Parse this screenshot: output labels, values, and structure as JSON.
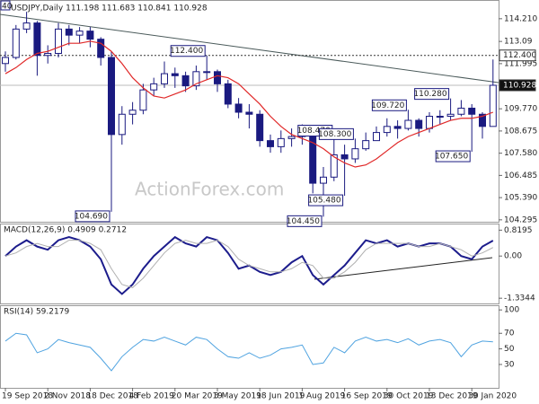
{
  "chart_data": [
    {
      "type": "candlestick",
      "title": "USDJPY,Daily  111.198 111.683 110.841 110.928",
      "corner_label": "40",
      "watermark": "ActionForex.com",
      "categories": [
        "19 Sep 2018",
        null,
        null,
        null,
        "2 Nov 2018",
        null,
        null,
        null,
        "18 Dec 2018",
        null,
        null,
        null,
        "4 Feb 2019",
        null,
        null,
        null,
        "20 Mar 2019",
        null,
        null,
        null,
        "3 May 2019",
        null,
        null,
        null,
        "18 Jun 2019",
        null,
        null,
        null,
        "1 Aug 2019",
        null,
        null,
        null,
        "16 Sep 2019",
        null,
        null,
        null,
        "30 Oct 2019",
        null,
        null,
        null,
        "13 Dec 2019",
        null,
        null,
        null,
        "30 Jan 2020",
        null,
        null
      ],
      "open": [
        112.0,
        112.3,
        113.7,
        114.0,
        112.4,
        112.5,
        113.7,
        113.4,
        113.6,
        113.2,
        112.3,
        108.5,
        109.5,
        109.7,
        110.7,
        111.0,
        111.5,
        111.4,
        110.9,
        111.6,
        111.6,
        111.0,
        110.0,
        109.6,
        109.5,
        108.2,
        107.9,
        108.3,
        108.4,
        108.5,
        106.1,
        106.4,
        107.5,
        107.3,
        107.8,
        108.2,
        108.6,
        108.9,
        108.8,
        109.2,
        108.8,
        109.4,
        109.4,
        109.5,
        109.8,
        109.5,
        108.9
      ],
      "high": [
        112.6,
        113.9,
        114.55,
        114.1,
        112.9,
        114.0,
        113.9,
        113.8,
        113.8,
        113.3,
        112.6,
        109.9,
        110.1,
        111.0,
        111.3,
        112.1,
        111.8,
        111.6,
        111.9,
        112.4,
        111.7,
        111.2,
        110.3,
        110.0,
        109.7,
        108.5,
        108.7,
        108.8,
        109.0,
        108.7,
        106.9,
        108.47,
        108.0,
        108.3,
        108.6,
        108.9,
        109.3,
        109.2,
        109.72,
        109.3,
        109.6,
        109.7,
        110.28,
        110.2,
        110.0,
        109.6,
        112.2
      ],
      "low": [
        111.6,
        112.2,
        113.5,
        111.4,
        112.0,
        112.3,
        112.9,
        113.0,
        112.8,
        111.9,
        104.69,
        108.0,
        109.0,
        109.5,
        110.4,
        110.8,
        110.8,
        110.6,
        110.7,
        111.2,
        110.6,
        109.8,
        109.3,
        108.8,
        107.9,
        107.6,
        107.6,
        107.9,
        108.0,
        105.6,
        104.45,
        106.2,
        105.48,
        107.1,
        107.7,
        108.2,
        108.4,
        108.3,
        108.7,
        108.4,
        108.6,
        109.0,
        109.2,
        109.4,
        107.65,
        108.3,
        108.9
      ],
      "close": [
        112.3,
        113.7,
        114.0,
        112.4,
        112.5,
        113.7,
        113.4,
        113.6,
        113.2,
        112.3,
        108.5,
        109.5,
        109.7,
        110.7,
        111.0,
        111.5,
        111.4,
        110.9,
        111.6,
        111.6,
        111.0,
        110.0,
        109.6,
        109.5,
        108.2,
        107.9,
        108.3,
        108.4,
        108.5,
        106.1,
        106.4,
        107.5,
        107.3,
        107.8,
        108.2,
        108.6,
        108.9,
        108.8,
        109.2,
        108.8,
        109.4,
        109.4,
        109.5,
        109.8,
        109.5,
        108.9,
        110.928
      ],
      "up_color": "#ffffff",
      "down_color": "#1a1a80",
      "outline_color": "#1a1a80",
      "moving_average": {
        "color": "#e02828",
        "values": [
          111.5,
          111.8,
          112.2,
          112.5,
          112.6,
          112.8,
          113.0,
          113.0,
          113.1,
          113.0,
          112.6,
          112.0,
          111.3,
          110.8,
          110.4,
          110.3,
          110.5,
          110.7,
          111.0,
          111.2,
          111.4,
          111.3,
          111.0,
          110.5,
          110.0,
          109.4,
          108.9,
          108.5,
          108.3,
          108.1,
          107.8,
          107.4,
          107.1,
          106.9,
          107.0,
          107.3,
          107.7,
          108.1,
          108.4,
          108.6,
          108.8,
          109.0,
          109.2,
          109.3,
          109.3,
          109.4,
          109.6
        ]
      },
      "price_labels": [
        {
          "value": 112.4,
          "label": "112.400"
        },
        {
          "value": 104.69,
          "label": "104.690"
        },
        {
          "value": 104.45,
          "label": "104.450"
        },
        {
          "value": 108.47,
          "label": "108.470"
        },
        {
          "value": 105.48,
          "label": "105.480"
        },
        {
          "value": 109.72,
          "label": "109.720"
        },
        {
          "value": 110.28,
          "label": "110.280"
        },
        {
          "value": 107.65,
          "label": "107.650"
        },
        {
          "value": 108.3,
          "label": "108.300"
        }
      ],
      "price_lines": [
        {
          "value": 112.4,
          "label": "112.400"
        },
        {
          "value": 110.928,
          "label": "110.928"
        }
      ],
      "ylim": [
        104.2,
        115.0
      ],
      "yticks": [
        {
          "value": 114.21,
          "label": "114.210"
        },
        113.09,
        {
          "value": 111.995,
          "label": "111.995"
        },
        {
          "value": 109.77,
          "label": "109.770"
        },
        {
          "value": 108.675,
          "label": "108.675"
        },
        {
          "value": 107.58,
          "label": "107.580"
        },
        {
          "value": 106.485,
          "label": "106.485"
        },
        {
          "value": 105.39,
          "label": "105.390"
        },
        {
          "value": 104.295,
          "label": "104.295"
        }
      ]
    },
    {
      "type": "line",
      "title": "MACD(12,26,9) 0.4909 0.2712",
      "series": [
        {
          "color": "#1c1c8c",
          "values": [
            0.0,
            0.3,
            0.5,
            0.3,
            0.2,
            0.5,
            0.6,
            0.5,
            0.3,
            -0.1,
            -0.9,
            -1.2,
            -0.9,
            -0.4,
            0.0,
            0.3,
            0.6,
            0.4,
            0.3,
            0.6,
            0.5,
            0.1,
            -0.4,
            -0.3,
            -0.5,
            -0.6,
            -0.5,
            -0.2,
            0.0,
            -0.6,
            -0.9,
            -0.6,
            -0.3,
            0.1,
            0.5,
            0.4,
            0.5,
            0.3,
            0.4,
            0.3,
            0.4,
            0.4,
            0.3,
            0.0,
            -0.1,
            0.3,
            0.49
          ]
        },
        {
          "color": "#b0b0b0",
          "values": [
            0.0,
            0.1,
            0.3,
            0.4,
            0.3,
            0.3,
            0.5,
            0.5,
            0.4,
            0.2,
            -0.4,
            -0.9,
            -1.0,
            -0.7,
            -0.3,
            0.1,
            0.4,
            0.5,
            0.4,
            0.4,
            0.5,
            0.3,
            -0.1,
            -0.3,
            -0.4,
            -0.5,
            -0.5,
            -0.4,
            -0.2,
            -0.3,
            -0.7,
            -0.7,
            -0.5,
            -0.2,
            0.2,
            0.4,
            0.4,
            0.4,
            0.4,
            0.3,
            0.3,
            0.4,
            0.3,
            0.2,
            0.0,
            0.1,
            0.27
          ]
        }
      ],
      "ylim": [
        -1.5,
        1.0
      ],
      "yticks": [
        0.8195,
        {
          "value": 0,
          "label": "0.00"
        },
        -1.3344
      ]
    },
    {
      "type": "line",
      "title": "RSI(14) 59.2179",
      "series": [
        {
          "color": "#4fa3e0",
          "values": [
            60,
            70,
            68,
            45,
            50,
            62,
            58,
            55,
            52,
            38,
            22,
            40,
            52,
            62,
            60,
            65,
            60,
            55,
            65,
            62,
            50,
            40,
            38,
            45,
            38,
            42,
            50,
            52,
            55,
            30,
            32,
            52,
            45,
            60,
            65,
            60,
            62,
            58,
            63,
            55,
            60,
            62,
            58,
            40,
            55,
            60,
            59
          ]
        }
      ],
      "ylim": [
        0,
        106
      ],
      "yticks": [
        100,
        70,
        50,
        30
      ]
    }
  ]
}
